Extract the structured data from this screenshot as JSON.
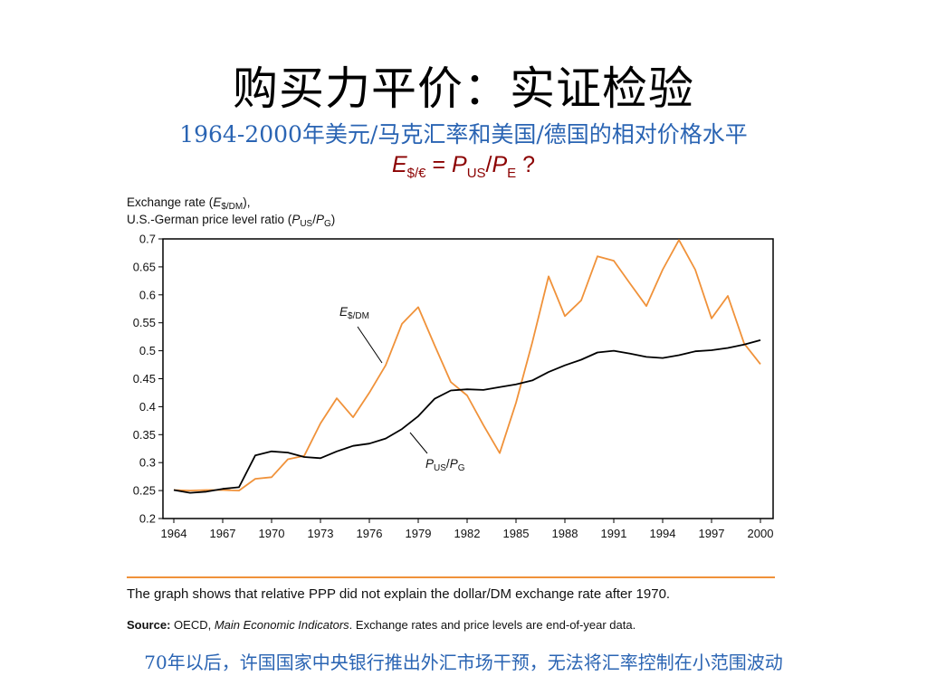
{
  "slide": {
    "title": "购买力平价：实证检验",
    "subtitle": "1964-2000年美元/马克汇率和美国/德国的相对价格水平",
    "formula": {
      "lhs": "E",
      "lhs_sub": "$/€",
      "eq": " = ",
      "p1": "P",
      "p1_sub": "US",
      "slash": "/",
      "p2": "P",
      "p2_sub": "E",
      "q": " ?"
    },
    "caption": "The graph shows that relative PPP did not explain the dollar/DM exchange rate after 1970.",
    "source_label": "Source:",
    "source_org": "OECD,",
    "source_pub": "Main Economic Indicators",
    "source_rest": ". Exchange rates and price levels are end-of-year data.",
    "footer": "70年以后，许国国家中央银行推出外汇市场干预，无法将汇率控制在小范围波动"
  },
  "chart_data": {
    "type": "line",
    "ylabel_line1": "Exchange rate (",
    "ylabel_line1_var": "E",
    "ylabel_line1_sub": "$/DM",
    "ylabel_line1_end": "),",
    "ylabel_line2": "U.S.-German price level ratio (",
    "ylabel_line2_p1": "P",
    "ylabel_line2_p1_sub": "US",
    "ylabel_line2_slash": "/",
    "ylabel_line2_p2": "P",
    "ylabel_line2_p2_sub": "G",
    "ylabel_line2_end": ")",
    "xlim": [
      1964,
      2000
    ],
    "ylim": [
      0.2,
      0.7
    ],
    "xticks": [
      1964,
      1967,
      1970,
      1973,
      1976,
      1979,
      1982,
      1985,
      1988,
      1991,
      1994,
      1997,
      2000
    ],
    "yticks": [
      0.2,
      0.25,
      0.3,
      0.35,
      0.4,
      0.45,
      0.5,
      0.55,
      0.6,
      0.65,
      0.7
    ],
    "ytick_labels": [
      "0.2",
      "0.25",
      "0.3",
      "0.35",
      "0.4",
      "0.45",
      "0.5",
      "0.55",
      "0.6",
      "0.65",
      "0.7"
    ],
    "grid": false,
    "series": [
      {
        "name": "E$/DM",
        "label_main": "E",
        "label_sub": "$/DM",
        "color": "#f0923a",
        "x": [
          1964,
          1965,
          1966,
          1967,
          1968,
          1969,
          1970,
          1971,
          1972,
          1973,
          1974,
          1975,
          1976,
          1977,
          1978,
          1979,
          1980,
          1981,
          1982,
          1983,
          1984,
          1985,
          1986,
          1987,
          1988,
          1989,
          1990,
          1991,
          1992,
          1993,
          1994,
          1995,
          1996,
          1997,
          1998,
          1999,
          2000
        ],
        "values": [
          0.251,
          0.25,
          0.251,
          0.251,
          0.25,
          0.271,
          0.274,
          0.306,
          0.312,
          0.37,
          0.415,
          0.381,
          0.425,
          0.474,
          0.548,
          0.578,
          0.51,
          0.444,
          0.42,
          0.367,
          0.317,
          0.407,
          0.515,
          0.633,
          0.562,
          0.59,
          0.669,
          0.661,
          0.62,
          0.58,
          0.645,
          0.698,
          0.645,
          0.558,
          0.598,
          0.513,
          0.476
        ]
      },
      {
        "name": "PUS/PG",
        "label_main1": "P",
        "label_sub1": "US",
        "label_slash": "/",
        "label_main2": "P",
        "label_sub2": "G",
        "color": "#000000",
        "x": [
          1964,
          1965,
          1966,
          1967,
          1968,
          1969,
          1970,
          1971,
          1972,
          1973,
          1974,
          1975,
          1976,
          1977,
          1978,
          1979,
          1980,
          1981,
          1982,
          1983,
          1984,
          1985,
          1986,
          1987,
          1988,
          1989,
          1990,
          1991,
          1992,
          1993,
          1994,
          1995,
          1996,
          1997,
          1998,
          1999,
          2000
        ],
        "values": [
          0.251,
          0.246,
          0.248,
          0.253,
          0.256,
          0.313,
          0.32,
          0.318,
          0.31,
          0.308,
          0.32,
          0.33,
          0.334,
          0.343,
          0.36,
          0.383,
          0.414,
          0.429,
          0.431,
          0.43,
          0.435,
          0.44,
          0.447,
          0.462,
          0.474,
          0.484,
          0.497,
          0.5,
          0.495,
          0.489,
          0.487,
          0.492,
          0.499,
          0.501,
          0.505,
          0.511,
          0.519
        ]
      }
    ]
  }
}
